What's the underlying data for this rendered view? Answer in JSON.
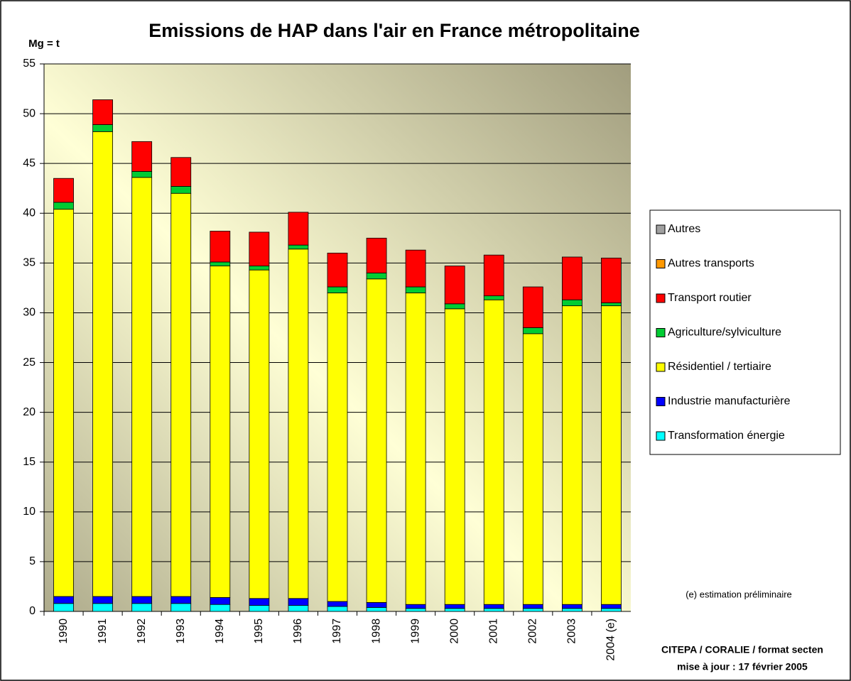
{
  "chart_data": {
    "type": "stacked_bar",
    "title": "Emissions de HAP dans l'air en France métropolitaine",
    "y_label": "Mg = t",
    "annotations": [
      "(e) estimation préliminaire",
      "CITEPA / CORALIE / format secten",
      "mise à jour : 17 février 2005"
    ],
    "categories": [
      "1990",
      "1991",
      "1992",
      "1993",
      "1994",
      "1995",
      "1996",
      "1997",
      "1998",
      "1999",
      "2000",
      "2001",
      "2002",
      "2003",
      "2004 (e)"
    ],
    "series": [
      {
        "name": "Transformation énergie",
        "color": "#00ffff",
        "values": [
          0.8,
          0.8,
          0.8,
          0.8,
          0.7,
          0.6,
          0.6,
          0.5,
          0.4,
          0.3,
          0.3,
          0.3,
          0.3,
          0.3,
          0.3
        ]
      },
      {
        "name": "Industrie manufacturière",
        "color": "#0000ff",
        "values": [
          0.7,
          0.7,
          0.7,
          0.7,
          0.7,
          0.7,
          0.7,
          0.5,
          0.5,
          0.4,
          0.4,
          0.4,
          0.4,
          0.4,
          0.4
        ]
      },
      {
        "name": "Résidentiel / tertiaire",
        "color": "#ffff00",
        "values": [
          38.9,
          46.7,
          42.1,
          40.5,
          33.3,
          33.0,
          35.1,
          31.0,
          32.5,
          31.3,
          29.7,
          30.6,
          27.2,
          30.0,
          30.0
        ]
      },
      {
        "name": "Agriculture/sylviculture",
        "color": "#00cc33",
        "values": [
          0.7,
          0.7,
          0.6,
          0.7,
          0.4,
          0.4,
          0.4,
          0.6,
          0.6,
          0.6,
          0.5,
          0.4,
          0.6,
          0.6,
          0.3
        ]
      },
      {
        "name": "Transport routier",
        "color": "#ff0000",
        "values": [
          2.4,
          2.5,
          3.0,
          2.9,
          3.1,
          3.4,
          3.3,
          3.4,
          3.5,
          3.7,
          3.8,
          4.1,
          4.1,
          4.3,
          4.5
        ]
      },
      {
        "name": "Autres transports",
        "color": "#ff9900",
        "values": [
          0,
          0,
          0,
          0,
          0,
          0,
          0,
          0,
          0,
          0,
          0,
          0,
          0,
          0,
          0
        ]
      },
      {
        "name": "Autres",
        "color": "#a0a0a0",
        "values": [
          0,
          0,
          0,
          0,
          0,
          0,
          0,
          0,
          0,
          0,
          0,
          0,
          0,
          0,
          0
        ]
      }
    ],
    "ylim": [
      0,
      55
    ],
    "yticks": [
      0,
      5,
      10,
      15,
      20,
      25,
      30,
      35,
      40,
      45,
      50,
      55
    ],
    "grid": true,
    "legend": "right"
  }
}
